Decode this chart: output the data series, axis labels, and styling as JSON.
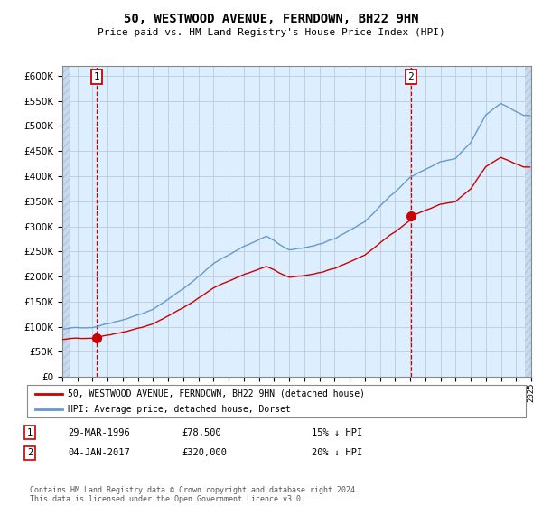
{
  "title": "50, WESTWOOD AVENUE, FERNDOWN, BH22 9HN",
  "subtitle": "Price paid vs. HM Land Registry's House Price Index (HPI)",
  "legend_label1": "50, WESTWOOD AVENUE, FERNDOWN, BH22 9HN (detached house)",
  "legend_label2": "HPI: Average price, detached house, Dorset",
  "table_row1": {
    "num": "1",
    "date": "29-MAR-1996",
    "price": "£78,500",
    "pct": "15% ↓ HPI"
  },
  "table_row2": {
    "num": "2",
    "date": "04-JAN-2017",
    "price": "£320,000",
    "pct": "20% ↓ HPI"
  },
  "footer": "Contains HM Land Registry data © Crown copyright and database right 2024.\nThis data is licensed under the Open Government Licence v3.0.",
  "background_color": "#ddeeff",
  "grid_color": "#bbccdd",
  "line_color_hpi": "#6699cc",
  "line_color_price": "#cc0000",
  "dashed_line_color": "#cc0000",
  "ylim": [
    0,
    620000
  ],
  "yticks": [
    0,
    50000,
    100000,
    150000,
    200000,
    250000,
    300000,
    350000,
    400000,
    450000,
    500000,
    550000,
    600000
  ],
  "sale1_year": 1996.25,
  "sale1_price": 78500,
  "sale2_year": 2017.04,
  "sale2_price": 320000,
  "xstart": 1994,
  "xend": 2025
}
